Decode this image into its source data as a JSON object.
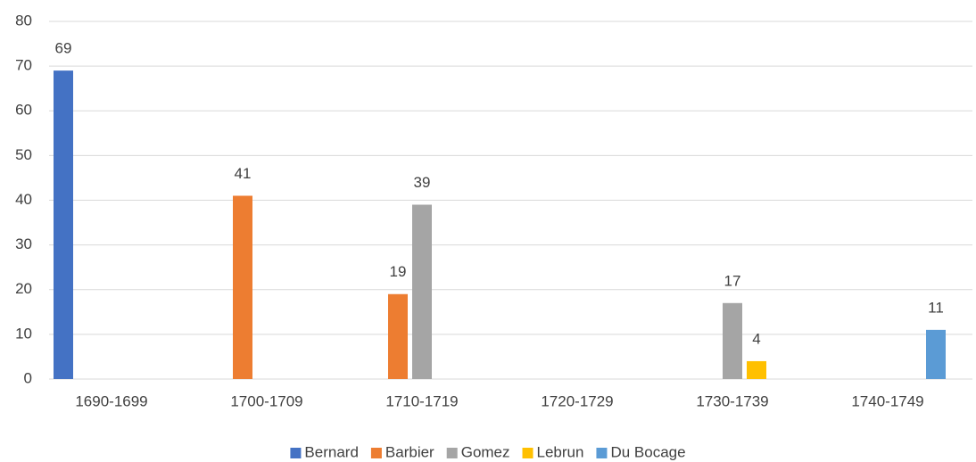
{
  "chart_data": {
    "type": "bar",
    "categories": [
      "1690-1699",
      "1700-1709",
      "1710-1719",
      "1720-1729",
      "1730-1739",
      "1740-1749"
    ],
    "series": [
      {
        "name": "Bernard",
        "color": "#4472c4",
        "values": [
          69,
          null,
          null,
          null,
          null,
          null
        ]
      },
      {
        "name": "Barbier",
        "color": "#ed7d31",
        "values": [
          null,
          41,
          19,
          null,
          null,
          null
        ]
      },
      {
        "name": "Gomez",
        "color": "#a5a5a5",
        "values": [
          null,
          null,
          39,
          null,
          17,
          null
        ]
      },
      {
        "name": "Lebrun",
        "color": "#ffc000",
        "values": [
          null,
          null,
          null,
          null,
          4,
          null
        ]
      },
      {
        "name": "Du Bocage",
        "color": "#5b9bd5",
        "values": [
          null,
          null,
          null,
          null,
          null,
          11
        ]
      }
    ],
    "ylim": [
      0,
      80
    ],
    "yticks": [
      0,
      10,
      20,
      30,
      40,
      50,
      60,
      70,
      80
    ],
    "grid": true,
    "legend": "bottom"
  }
}
